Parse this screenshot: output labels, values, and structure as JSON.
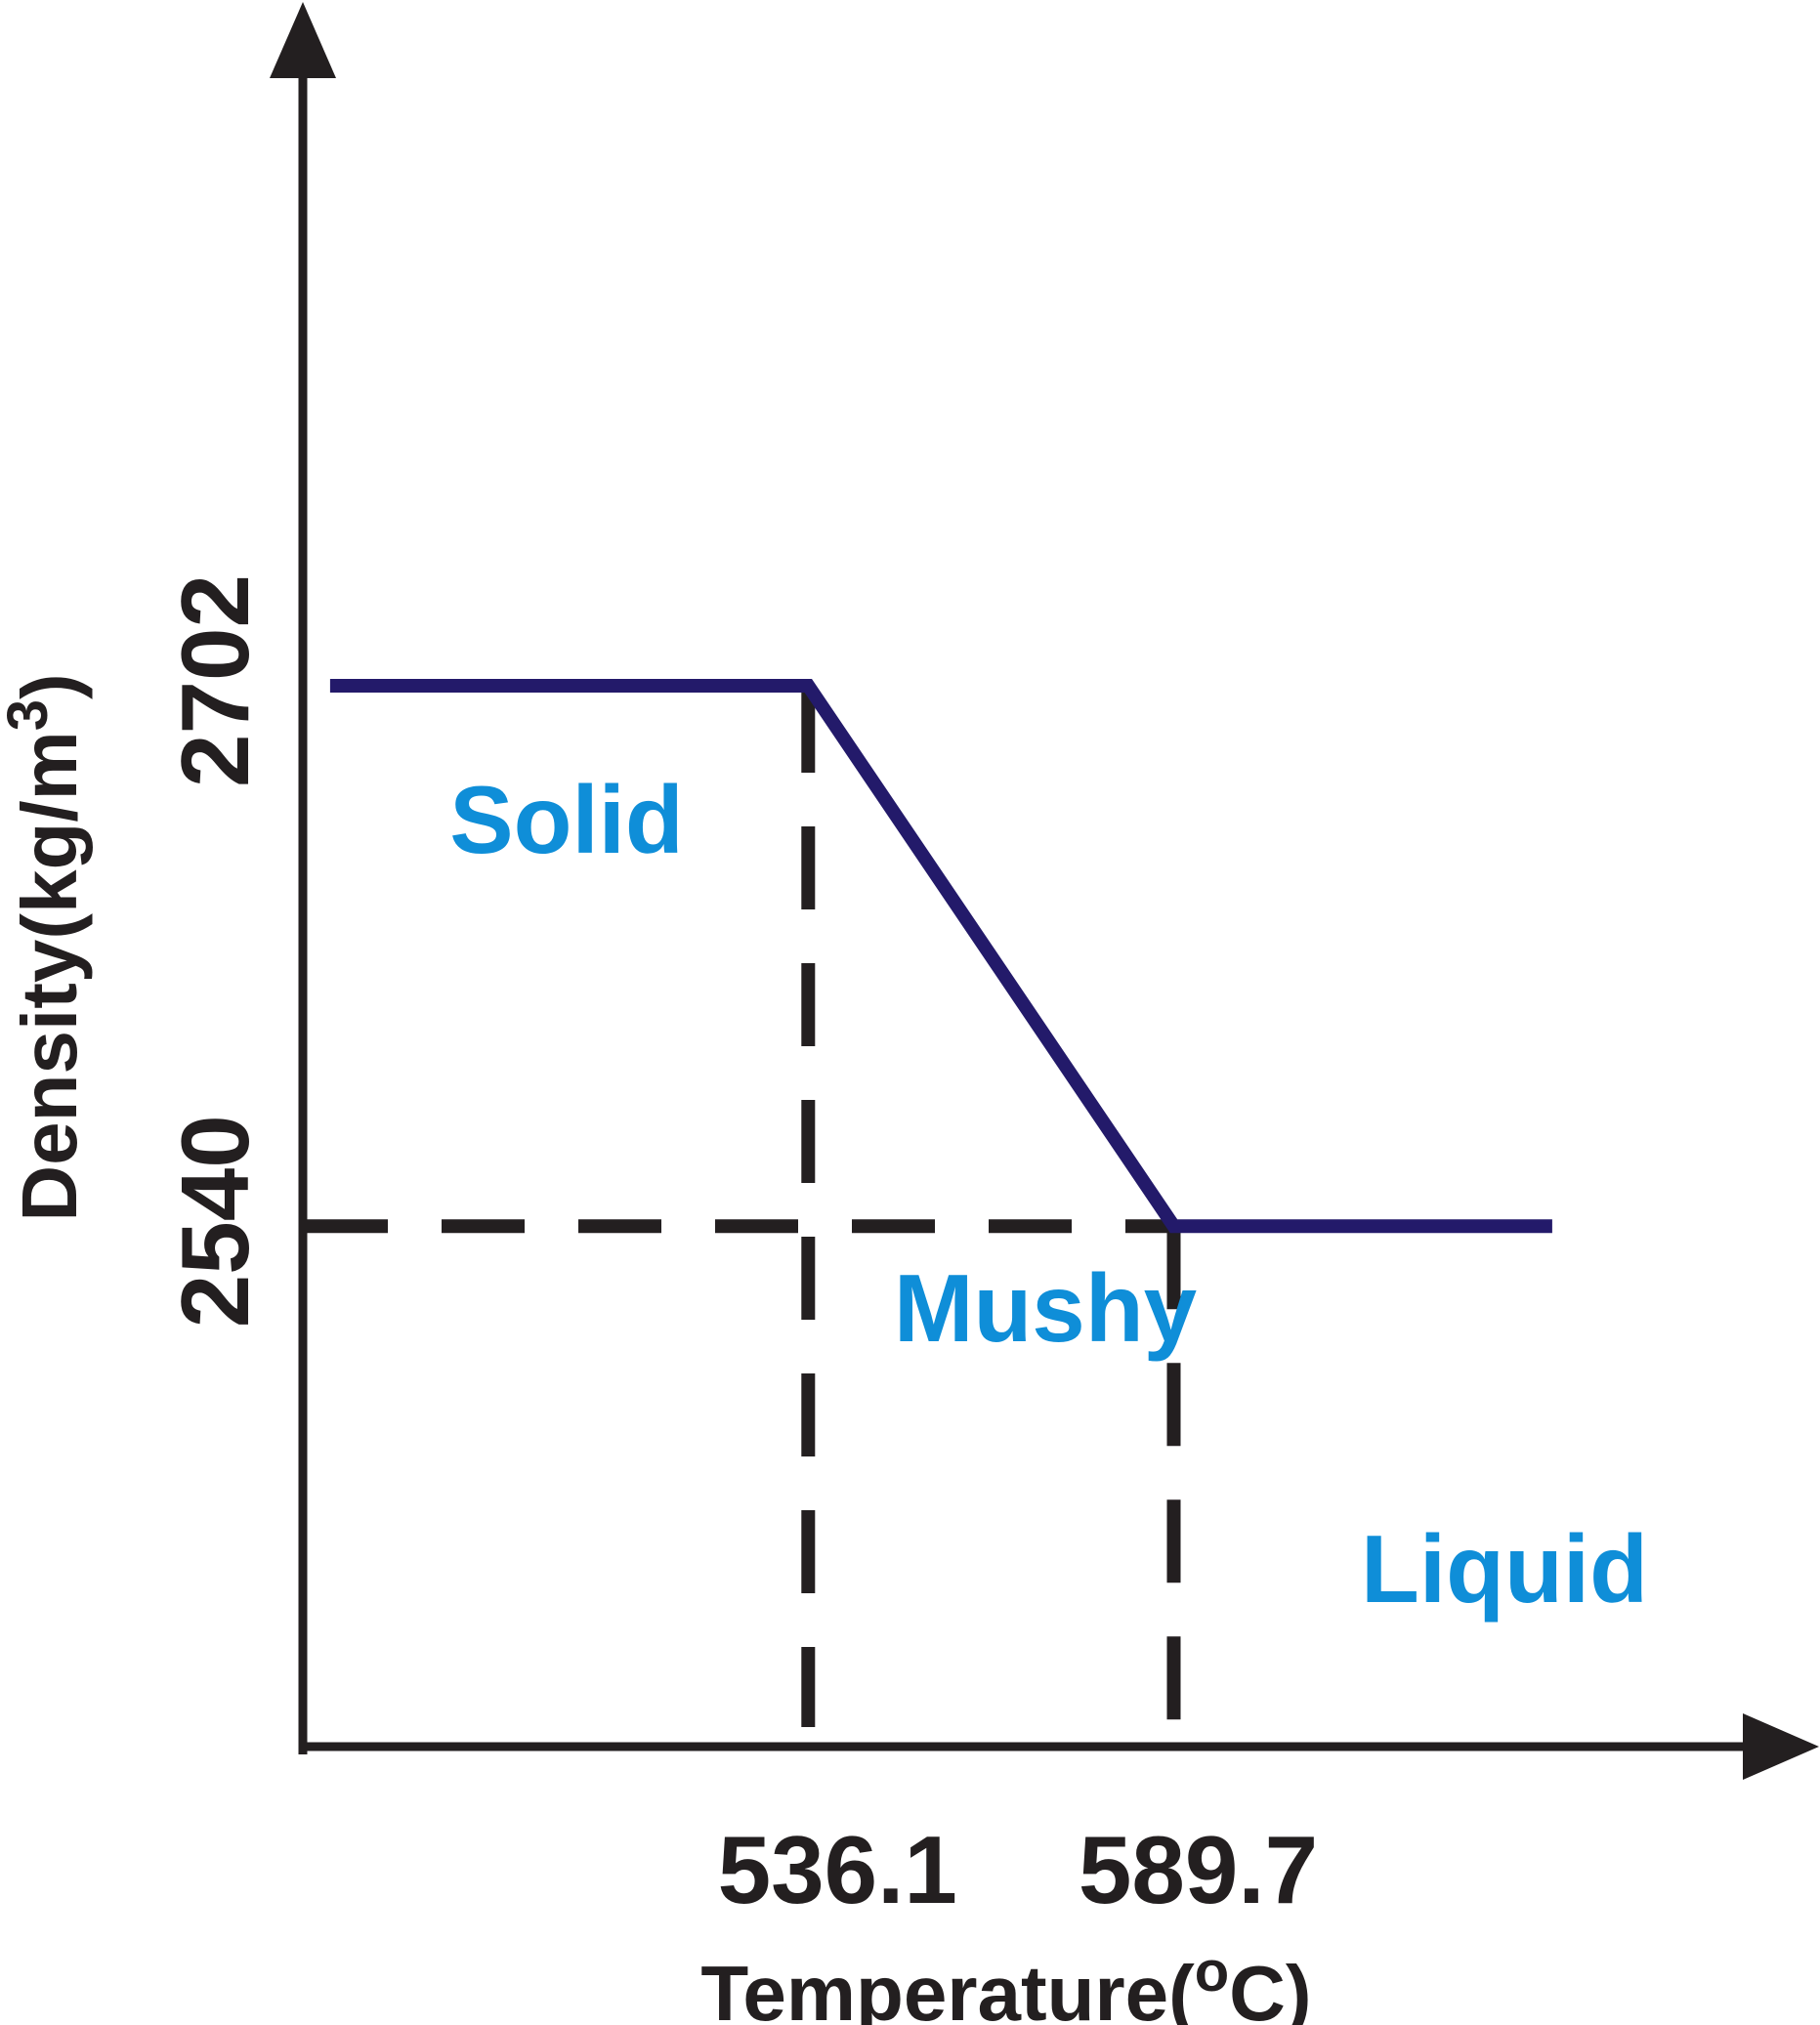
{
  "chart_data": {
    "type": "line",
    "title": "",
    "xlabel": "Temperature(°C)",
    "xlabel_main": "Temperature(",
    "xlabel_unit_sup": "o",
    "xlabel_unit_rest": "C)",
    "ylabel": "Density(kg/m3)",
    "ylabel_main": "Density(kg/m",
    "ylabel_sup": "3",
    "ylabel_close": ")",
    "x_ticks": [
      {
        "value": 536.1,
        "label": "536.1"
      },
      {
        "value": 589.7,
        "label": "589.7"
      }
    ],
    "y_ticks": [
      {
        "value": 2540,
        "label": "2540"
      },
      {
        "value": 2702,
        "label": "2702"
      }
    ],
    "series": [
      {
        "x": [
          466.0,
          536.1,
          589.7,
          645.2
        ],
        "y": [
          2702,
          2702,
          2540,
          2540
        ],
        "color": "#231a6a"
      }
    ],
    "regions": [
      {
        "label": "Solid",
        "color": "#0f8ed8"
      },
      {
        "label": "Mushy",
        "color": "#0f8ed8"
      },
      {
        "label": "Liquid",
        "color": "#0f8ed8"
      }
    ],
    "xlim": [
      462.0,
      674.0
    ],
    "ylim": [
      2384,
      2890
    ],
    "grid": false,
    "legend": "none",
    "reference_lines": "dashed",
    "axis_color": "#231f20"
  }
}
